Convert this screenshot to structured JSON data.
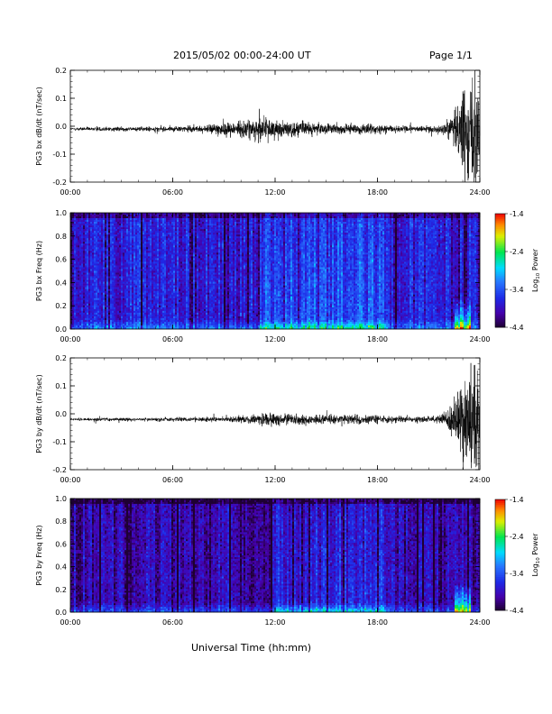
{
  "header": {
    "title": "2015/05/02  00:00-24:00 UT",
    "page": "Page 1/1"
  },
  "x_axis_title": "Universal Time (hh:mm)",
  "colors": {
    "trace": "#000000",
    "axis": "#000000"
  },
  "chart_data": [
    {
      "type": "line",
      "ylabel": "PG3 bx dB/dt (nT/sec)",
      "ylim": [
        -0.2,
        0.2
      ],
      "yticks": [
        "0.2",
        "0.1",
        "0.0",
        "-0.1",
        "-0.2"
      ],
      "xticks": [
        "00:00",
        "06:00",
        "12:00",
        "18:00",
        "24:00"
      ],
      "xlim_hours": [
        0,
        24
      ],
      "envelope": {
        "hours": [
          0,
          2,
          4,
          6,
          8,
          8.8,
          9.5,
          10.5,
          11.5,
          12.5,
          13.5,
          14.5,
          16,
          17.5,
          18.5,
          20,
          21.5,
          22,
          22.5,
          23,
          23.5,
          24
        ],
        "amplitude": [
          0.006,
          0.008,
          0.008,
          0.009,
          0.012,
          0.03,
          0.025,
          0.035,
          0.04,
          0.03,
          0.025,
          0.02,
          0.018,
          0.02,
          0.015,
          0.01,
          0.012,
          0.02,
          0.06,
          0.14,
          0.2,
          0.2
        ]
      },
      "baseline": -0.01
    },
    {
      "type": "heatmap",
      "ylabel": "PG3 bx Freq (Hz)",
      "ylim": [
        0.0,
        1.0
      ],
      "yticks": [
        "1.0",
        "0.8",
        "0.6",
        "0.4",
        "0.2",
        "0.0"
      ],
      "xticks": [
        "00:00",
        "06:00",
        "12:00",
        "18:00",
        "24:00"
      ],
      "xlim_hours": [
        0,
        24
      ],
      "colorbar": {
        "label": "Log10 Power",
        "label_main": "Log",
        "label_sub": "10",
        "label_tail": " Power",
        "ticks": [
          "-1.4",
          "-2.4",
          "-3.4",
          "-4.4"
        ],
        "range": [
          -4.4,
          -1.4
        ]
      },
      "base_level": -3.75,
      "active_band_hours": [
        11,
        18.5
      ],
      "low_freq_boost_hours": [
        22.5,
        23.5
      ]
    },
    {
      "type": "line",
      "ylabel": "PG3 by dB/dt (nT/sec)",
      "ylim": [
        -0.2,
        0.2
      ],
      "yticks": [
        "0.2",
        "0.1",
        "0.0",
        "-0.1",
        "-0.2"
      ],
      "xticks": [
        "00:00",
        "06:00",
        "12:00",
        "18:00",
        "24:00"
      ],
      "xlim_hours": [
        0,
        24
      ],
      "envelope": {
        "hours": [
          0,
          2,
          4,
          6,
          8,
          10,
          11.5,
          12.5,
          13.5,
          15,
          16.5,
          18,
          19,
          20.5,
          21.5,
          22,
          22.5,
          23,
          23.5,
          24
        ],
        "amplitude": [
          0.004,
          0.006,
          0.006,
          0.007,
          0.008,
          0.012,
          0.025,
          0.02,
          0.018,
          0.015,
          0.018,
          0.015,
          0.012,
          0.01,
          0.012,
          0.025,
          0.07,
          0.16,
          0.2,
          0.2
        ]
      },
      "baseline": -0.02
    },
    {
      "type": "heatmap",
      "ylabel": "PG3 by Freq (Hz)",
      "ylim": [
        0.0,
        1.0
      ],
      "yticks": [
        "1.0",
        "0.8",
        "0.6",
        "0.4",
        "0.2",
        "0.0"
      ],
      "xticks": [
        "00:00",
        "06:00",
        "12:00",
        "18:00",
        "24:00"
      ],
      "xlim_hours": [
        0,
        24
      ],
      "colorbar": {
        "label": "Log10 Power",
        "label_main": "Log",
        "label_sub": "10",
        "label_tail": " Power",
        "ticks": [
          "-1.4",
          "-2.4",
          "-3.4",
          "-4.4"
        ],
        "range": [
          -4.4,
          -1.4
        ]
      },
      "base_level": -4.0,
      "active_band_hours": [
        12,
        18.5
      ],
      "low_freq_boost_hours": [
        22.5,
        23.5
      ]
    }
  ]
}
